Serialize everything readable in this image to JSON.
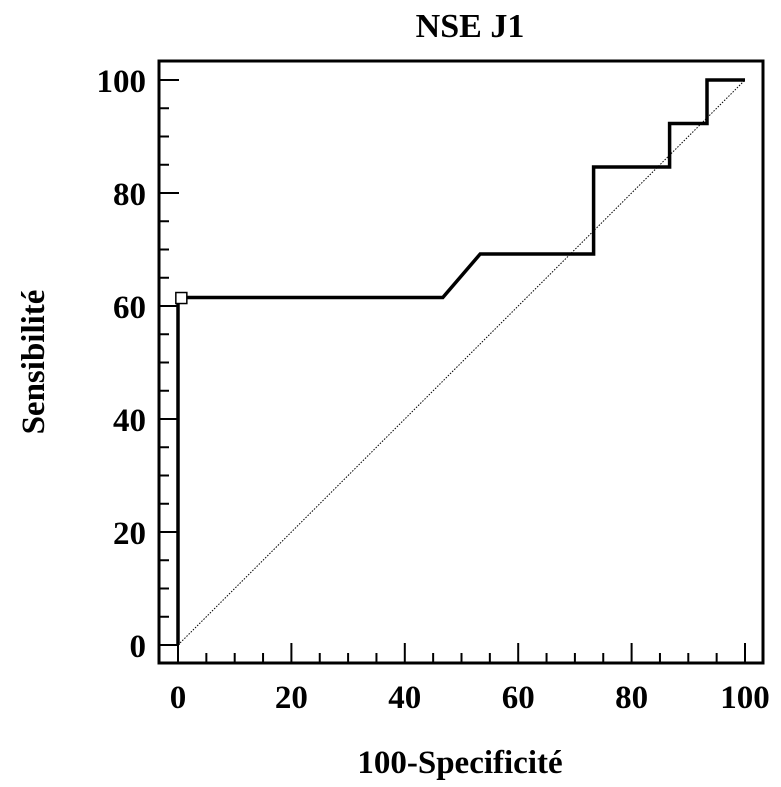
{
  "chart_data": {
    "type": "line",
    "title": "NSE J1",
    "xlabel": "100-Specificité",
    "ylabel": "Sensibilité",
    "xlim": [
      0,
      100
    ],
    "ylim": [
      0,
      100
    ],
    "x_ticks": [
      "0",
      "20",
      "40",
      "60",
      "80",
      "100"
    ],
    "y_ticks": [
      "0",
      "20",
      "40",
      "60",
      "80",
      "100"
    ],
    "grid": false,
    "legend": "none",
    "series": [
      {
        "kind": "roc-curve",
        "points": [
          [
            0,
            0
          ],
          [
            0,
            61.5
          ],
          [
            46.7,
            61.5
          ],
          [
            53.3,
            69.2
          ],
          [
            73.3,
            69.2
          ],
          [
            73.3,
            84.6
          ],
          [
            86.7,
            84.6
          ],
          [
            86.7,
            92.3
          ],
          [
            93.3,
            92.3
          ],
          [
            93.3,
            100
          ],
          [
            100,
            100
          ]
        ]
      },
      {
        "kind": "reference-diagonal",
        "points": [
          [
            0,
            0
          ],
          [
            100,
            100
          ]
        ]
      }
    ],
    "annotations": [
      {
        "kind": "marker-square",
        "x": 0.5,
        "y": 61.5
      }
    ]
  }
}
